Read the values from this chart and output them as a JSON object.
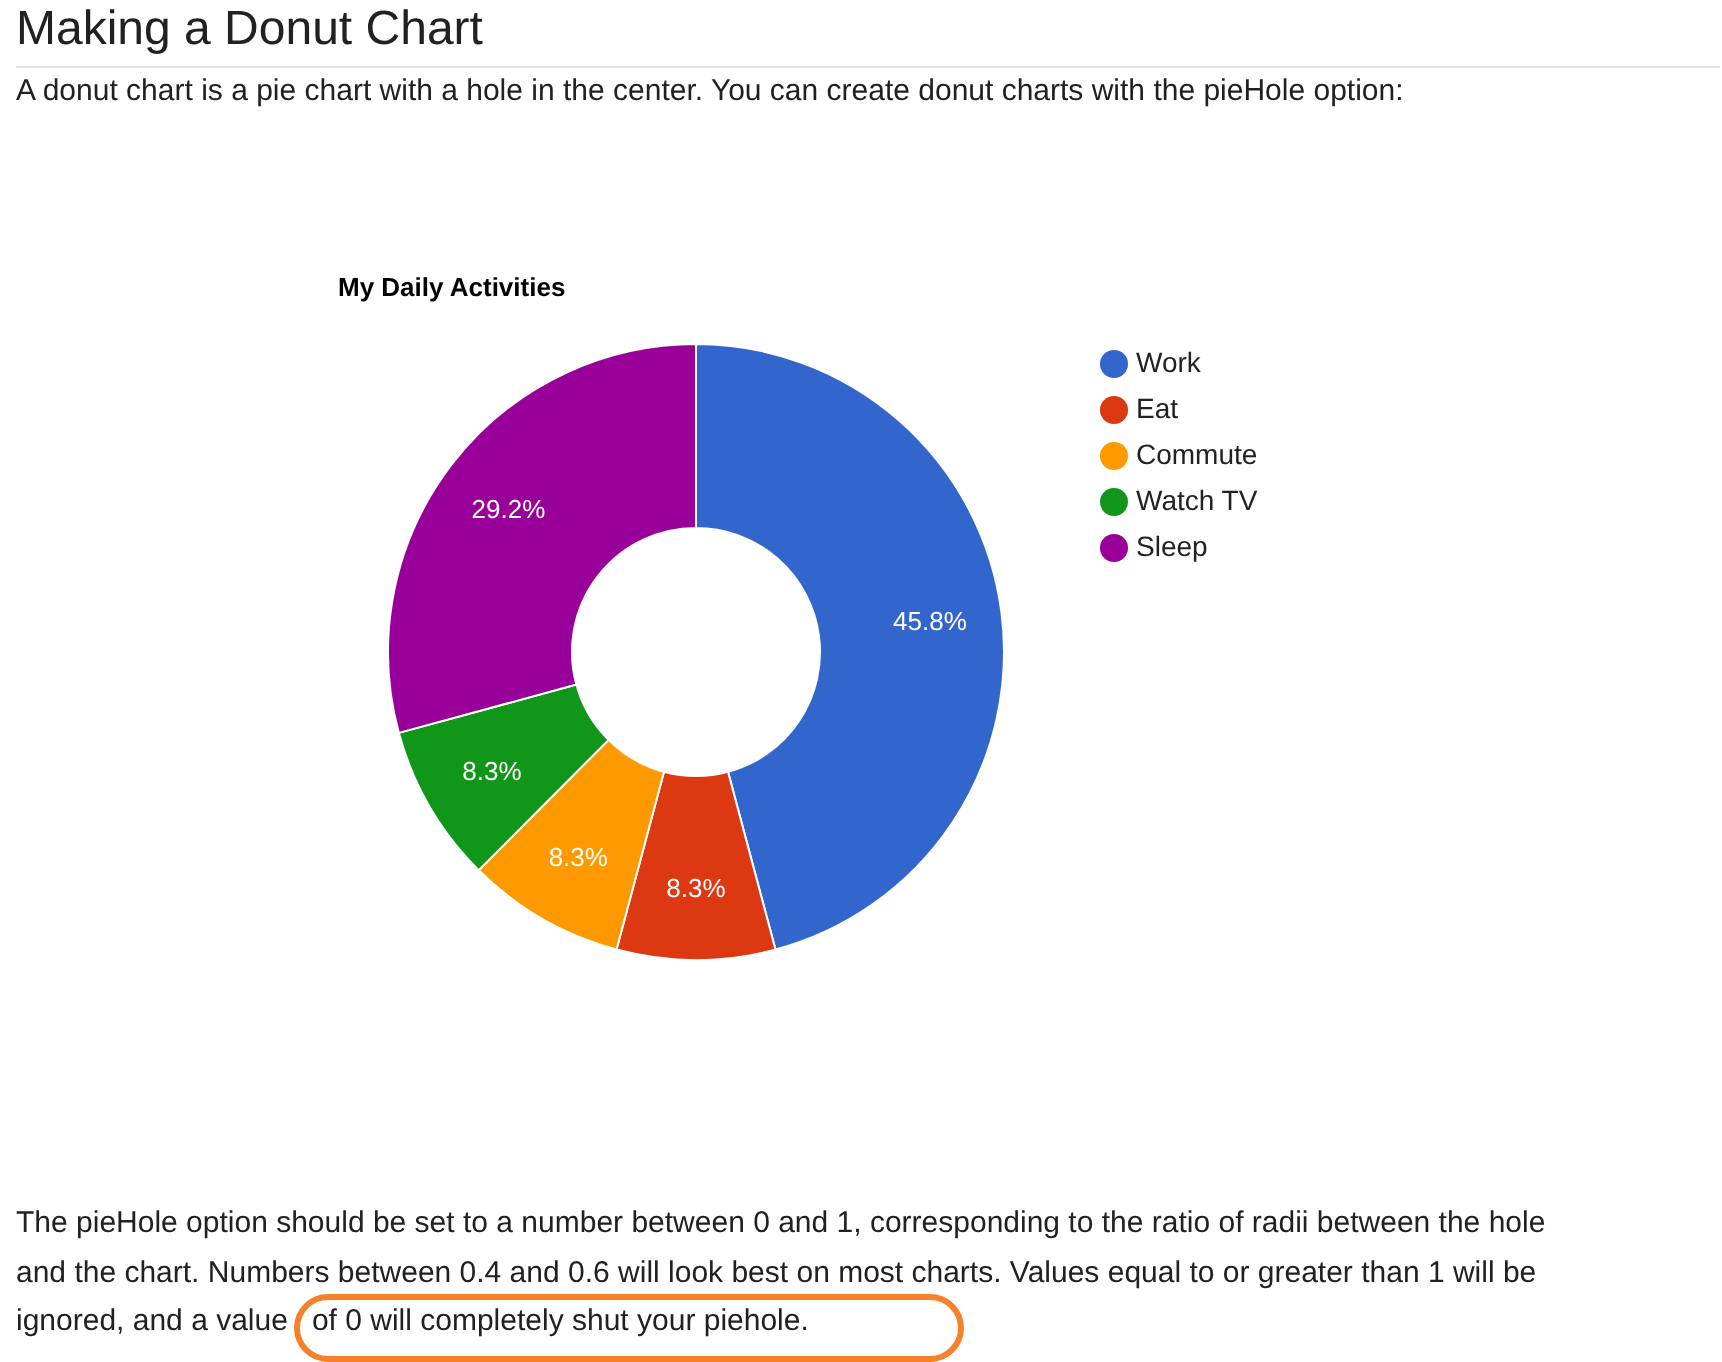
{
  "chart_data": {
    "type": "donut",
    "title": "My Daily Activities",
    "categories": [
      "Work",
      "Eat",
      "Commute",
      "Watch TV",
      "Sleep"
    ],
    "values": [
      45.8,
      8.3,
      8.3,
      8.3,
      29.2
    ],
    "value_labels": [
      "45.8%",
      "8.3%",
      "8.3%",
      "8.3%",
      "29.2%"
    ],
    "colors": [
      "#3366cc",
      "#dc3912",
      "#ff9900",
      "#109618",
      "#990099"
    ],
    "legend": "top right",
    "annotations": [
      "Making a Donut Chart",
      "A donut chart is a pie chart with a hole in the center. You can create donut charts with the pieHole option:",
      "The pieHole option should be set to a number between 0 and 1, corresponding to the ratio of radii between the hole",
      "and the chart. Numbers between 0.4 and 0.6 will look best on most charts. Values equal to or greater than 1 will be",
      "ignored, and a value",
      "of 0 will completely shut your piehole."
    ]
  }
}
